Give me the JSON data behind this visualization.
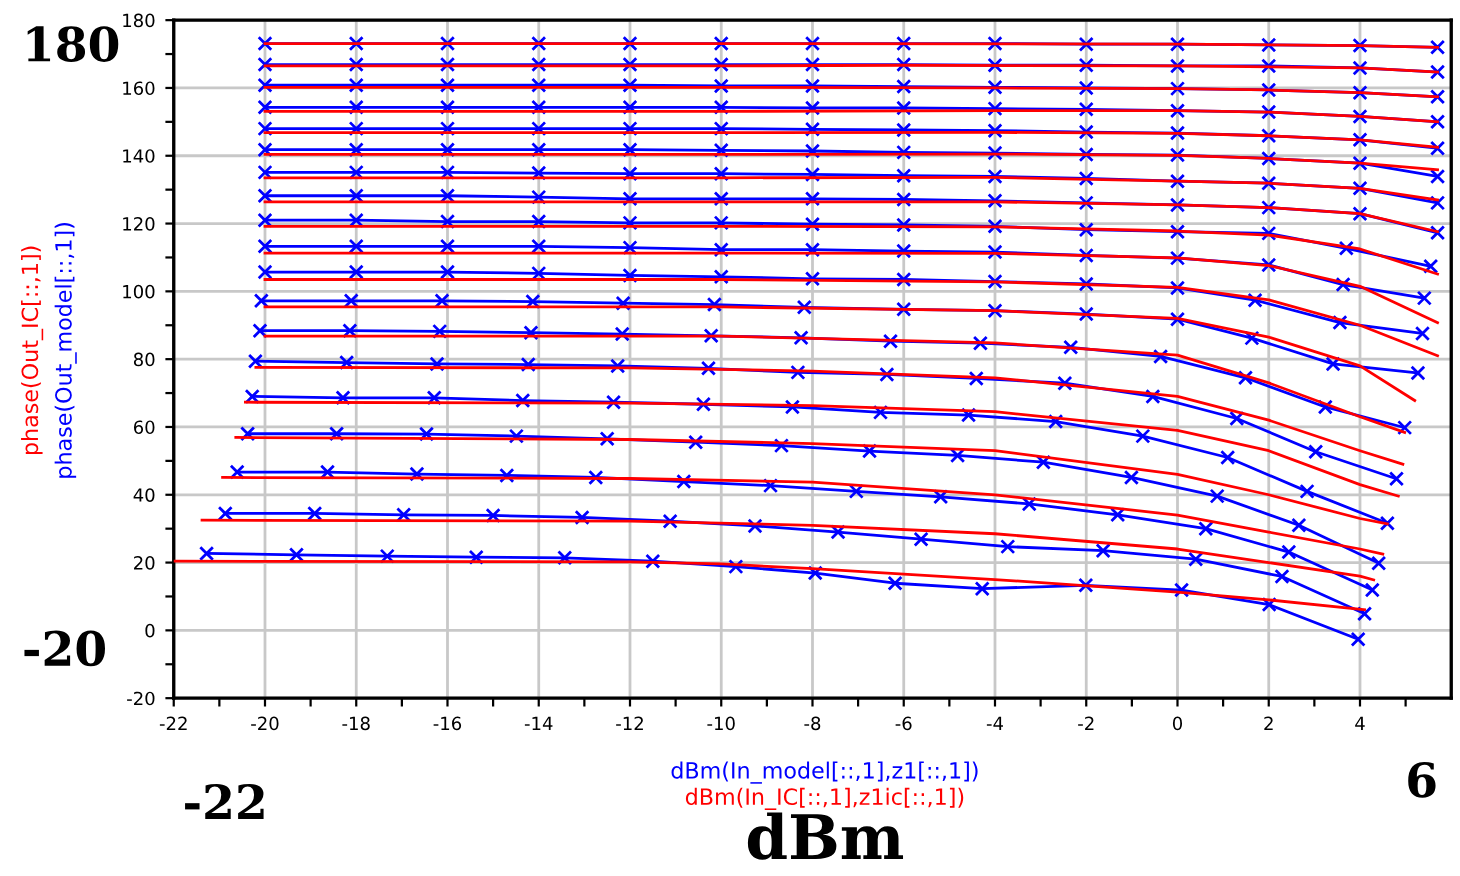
{
  "chart_data": {
    "type": "line",
    "xlabel": "dBm",
    "xlim": [
      -22,
      6
    ],
    "ylim": [
      -20,
      180
    ],
    "xticks": [
      -22,
      {
        "value": -21,
        "label": null
      },
      -20,
      {
        "value": -19,
        "label": null
      },
      -18,
      {
        "value": -17,
        "label": null
      },
      -16,
      {
        "value": -15,
        "label": null
      },
      -14,
      {
        "value": -13,
        "label": null
      },
      -12,
      {
        "value": -11,
        "label": null
      },
      -10,
      {
        "value": -9,
        "label": null
      },
      -8,
      {
        "value": -7,
        "label": null
      },
      -6,
      {
        "value": -5,
        "label": null
      },
      -4,
      {
        "value": -3,
        "label": null
      },
      -2,
      {
        "value": -1,
        "label": null
      },
      0,
      {
        "value": 1,
        "label": null
      },
      2,
      {
        "value": 3,
        "label": null
      },
      4,
      {
        "value": 5,
        "label": null
      }
    ],
    "yticks": [
      -20,
      {
        "value": -10,
        "label": null
      },
      0,
      {
        "value": 10,
        "label": null
      },
      20,
      {
        "value": 30,
        "label": null
      },
      40,
      {
        "value": 50,
        "label": null
      },
      60,
      {
        "value": 70,
        "label": null
      },
      80,
      {
        "value": 90,
        "label": null
      },
      100,
      {
        "value": 110,
        "label": null
      },
      120,
      {
        "value": 130,
        "label": null
      },
      140,
      {
        "value": 150,
        "label": null
      },
      160,
      {
        "value": 170,
        "label": null
      },
      180
    ],
    "grid": true,
    "marker": "cross",
    "line_style": "solid",
    "annotations": [
      "phase(Out_IC[::,1])",
      "phase(Out_model[::,1])",
      "dBm(In_model[::,1],z1[::,1])",
      "dBm(In_IC[::,1],z1ic[::,1])",
      "180",
      "-20",
      "-22",
      "6"
    ],
    "series": [
      {
        "color": "#0000ff",
        "x": [
          -20,
          -18,
          -16,
          -14,
          -12,
          -10,
          -8,
          -6,
          -4,
          -2,
          0,
          2,
          4,
          5.7
        ],
        "values": [
          173.1,
          173.1,
          173.1,
          173.1,
          173.1,
          173.1,
          173.1,
          173.1,
          173.1,
          172.9,
          172.9,
          172.7,
          172.5,
          172.0
        ]
      },
      {
        "color": "#0000ff",
        "x": [
          -20,
          -18,
          -16,
          -14,
          -12,
          -10,
          -8,
          -6,
          -4,
          -2,
          0,
          2,
          4,
          5.7
        ],
        "values": [
          166.9,
          166.9,
          166.9,
          166.9,
          166.9,
          166.9,
          166.9,
          166.9,
          166.7,
          166.7,
          166.5,
          166.5,
          165.9,
          164.7
        ]
      },
      {
        "color": "#0000ff",
        "x": [
          -20,
          -18,
          -16,
          -14,
          -12,
          -10,
          -8,
          -6,
          -4,
          -2,
          0,
          2,
          4,
          5.7
        ],
        "values": [
          160.8,
          160.8,
          160.8,
          160.8,
          160.8,
          160.6,
          160.6,
          160.4,
          160.2,
          160.0,
          159.8,
          159.4,
          158.6,
          157.4
        ]
      },
      {
        "color": "#0000ff",
        "x": [
          -20,
          -18,
          -16,
          -14,
          -12,
          -10,
          -8,
          -6,
          -4,
          -2,
          0,
          2,
          4,
          5.7
        ],
        "values": [
          154.3,
          154.3,
          154.3,
          154.3,
          154.3,
          154.3,
          154.1,
          154.1,
          153.9,
          153.7,
          153.3,
          152.9,
          151.6,
          150.0
        ]
      },
      {
        "color": "#0000ff",
        "x": [
          -20,
          -18,
          -16,
          -14,
          -12,
          -10,
          -8,
          -6,
          -4,
          -2,
          0,
          2,
          4,
          5.7
        ],
        "values": [
          148.0,
          148.0,
          148.0,
          148.0,
          148.0,
          148.0,
          147.8,
          147.6,
          147.4,
          147.0,
          146.7,
          145.9,
          144.7,
          142.2
        ]
      },
      {
        "color": "#0000ff",
        "x": [
          -20,
          -18,
          -16,
          -14,
          -12,
          -10,
          -8,
          -6,
          -4,
          -2,
          0,
          2,
          4,
          5.7
        ],
        "values": [
          141.8,
          141.8,
          141.8,
          141.8,
          141.8,
          141.6,
          141.4,
          141.0,
          140.8,
          140.4,
          140.2,
          139.2,
          137.8,
          133.9
        ]
      },
      {
        "color": "#0000ff",
        "x": [
          -20,
          -18,
          -16,
          -14,
          -12,
          -10,
          -8,
          -6,
          -4,
          -2,
          0,
          2,
          4,
          5.7
        ],
        "values": [
          135.1,
          135.1,
          135.1,
          134.9,
          134.7,
          134.7,
          134.5,
          134.1,
          133.9,
          133.3,
          132.5,
          131.9,
          130.4,
          126.1
        ]
      },
      {
        "color": "#0000ff",
        "x": [
          -20,
          -18,
          -16,
          -14,
          -12,
          -10,
          -8,
          -6,
          -4,
          -2,
          0,
          2,
          4,
          5.7
        ],
        "values": [
          128.2,
          128.2,
          128.2,
          127.8,
          127.3,
          127.3,
          127.3,
          127.1,
          126.7,
          126.1,
          125.5,
          124.7,
          122.9,
          117.3
        ]
      },
      {
        "color": "#0000ff",
        "x": [
          -20,
          -18,
          -16,
          -14,
          -12,
          -10,
          -8,
          -6,
          -4,
          -2,
          0,
          2,
          3.7,
          5.55
        ],
        "values": [
          121.0,
          121.0,
          120.6,
          120.6,
          120.2,
          120.2,
          119.8,
          119.6,
          119.2,
          118.2,
          117.6,
          117.1,
          112.7,
          107.4
        ]
      },
      {
        "color": "#0000ff",
        "x": [
          -20,
          -18,
          -16,
          -14,
          -12,
          -10,
          -8,
          -6,
          -4,
          -2,
          0,
          2,
          3.63,
          5.41
        ],
        "values": [
          113.3,
          113.3,
          113.3,
          113.3,
          112.9,
          112.3,
          112.3,
          111.9,
          111.6,
          110.6,
          109.8,
          107.8,
          102.0,
          98.0
        ]
      },
      {
        "color": "#0000ff",
        "x": [
          -20,
          -18,
          -16,
          -14,
          -12,
          -10,
          -8,
          -6,
          -4,
          -2,
          0,
          1.7,
          3.56,
          5.37
        ],
        "values": [
          105.7,
          105.7,
          105.7,
          105.3,
          104.7,
          104.3,
          103.7,
          103.5,
          102.9,
          102.2,
          101.0,
          97.4,
          90.8,
          87.6
        ]
      },
      {
        "color": "#0000ff",
        "x": [
          -20.08,
          -18.11,
          -16.12,
          -14.13,
          -12.15,
          -10.15,
          -8.18,
          -6,
          -4,
          -2,
          0,
          1.63,
          3.41,
          5.27
        ],
        "values": [
          97.2,
          97.2,
          97.2,
          97.0,
          96.5,
          96.1,
          95.3,
          94.7,
          94.3,
          93.3,
          91.8,
          86.2,
          78.6,
          75.9
        ]
      },
      {
        "color": "#0000ff",
        "x": [
          -20.11,
          -18.14,
          -16.17,
          -14.17,
          -12.17,
          -10.22,
          -8.25,
          -6.29,
          -4.32,
          -2.34,
          -0.37,
          1.49,
          3.24,
          4.98
        ],
        "values": [
          88.4,
          88.4,
          88.2,
          87.8,
          87.4,
          86.9,
          86.3,
          85.3,
          84.7,
          83.5,
          80.8,
          74.5,
          65.9,
          59.8
        ]
      },
      {
        "color": "#0000ff",
        "x": [
          -20.21,
          -18.21,
          -16.23,
          -14.23,
          -12.27,
          -10.28,
          -8.32,
          -6.37,
          -4.41,
          -2.47,
          -0.54,
          1.3,
          3.03,
          4.8
        ],
        "values": [
          79.4,
          79.0,
          78.6,
          78.4,
          78.0,
          77.3,
          76.1,
          75.5,
          74.3,
          72.9,
          69.0,
          62.5,
          52.7,
          44.7
        ]
      },
      {
        "color": "#0000ff",
        "x": [
          -20.28,
          -18.29,
          -16.29,
          -14.35,
          -12.36,
          -10.39,
          -8.44,
          -6.51,
          -4.58,
          -2.67,
          -0.76,
          1.1,
          2.84,
          4.6
        ],
        "values": [
          69.0,
          68.6,
          68.6,
          67.8,
          67.3,
          66.7,
          65.9,
          64.3,
          63.5,
          61.6,
          57.3,
          51.0,
          41.0,
          31.6
        ]
      },
      {
        "color": "#0000ff",
        "x": [
          -20.38,
          -18.43,
          -16.46,
          -14.49,
          -12.5,
          -10.56,
          -8.68,
          -6.75,
          -4.82,
          -2.94,
          -1.01,
          0.87,
          2.66,
          4.41
        ],
        "values": [
          58.0,
          58.0,
          57.9,
          57.3,
          56.5,
          55.5,
          54.5,
          52.9,
          51.6,
          49.6,
          45.1,
          39.6,
          31.0,
          19.8
        ]
      },
      {
        "color": "#0000ff",
        "x": [
          -20.61,
          -18.63,
          -16.67,
          -14.7,
          -12.75,
          -10.82,
          -8.92,
          -7.04,
          -5.19,
          -3.25,
          -1.31,
          0.62,
          2.44,
          4.27
        ],
        "values": [
          46.7,
          46.7,
          46.1,
          45.7,
          45.1,
          43.9,
          42.7,
          41.0,
          39.4,
          37.3,
          34.1,
          30.0,
          23.1,
          11.9
        ]
      },
      {
        "color": "#0000ff",
        "x": [
          -20.87,
          -18.91,
          -16.96,
          -15.0,
          -13.05,
          -11.12,
          -9.26,
          -7.44,
          -5.62,
          -3.72,
          -1.63,
          0.4,
          2.29,
          4.1
        ],
        "values": [
          34.5,
          34.5,
          34.1,
          33.9,
          33.3,
          32.2,
          30.8,
          29.0,
          26.9,
          24.7,
          23.5,
          21.0,
          15.9,
          4.9
        ]
      },
      {
        "color": "#0000ff",
        "x": [
          -21.28,
          -19.31,
          -17.32,
          -15.37,
          -13.43,
          -11.5,
          -9.68,
          -7.94,
          -6.19,
          -4.28,
          -2.01,
          0.09,
          2.01,
          3.96
        ],
        "values": [
          22.7,
          22.3,
          21.9,
          21.6,
          21.4,
          20.4,
          18.8,
          16.9,
          13.9,
          12.3,
          13.3,
          11.9,
          7.6,
          -2.6
        ]
      },
      {
        "color": "#ff0000",
        "marker": "none",
        "x": [
          -20,
          -10,
          0,
          4,
          5.7
        ],
        "values": [
          173.1,
          173.1,
          172.9,
          172.5,
          172.0
        ]
      },
      {
        "color": "#ff0000",
        "marker": "none",
        "x": [
          -20,
          -10,
          -6,
          0,
          4,
          5.7
        ],
        "values": [
          166.5,
          166.5,
          166.7,
          166.5,
          165.9,
          164.7
        ]
      },
      {
        "color": "#ff0000",
        "marker": "none",
        "x": [
          -20,
          -10,
          -4,
          0,
          2,
          4,
          5.7
        ],
        "values": [
          160.2,
          160.2,
          160.0,
          159.8,
          159.4,
          158.6,
          157.4
        ]
      },
      {
        "color": "#ff0000",
        "marker": "none",
        "x": [
          -20,
          -10,
          -4,
          0,
          2,
          4,
          5.7
        ],
        "values": [
          153.1,
          153.1,
          153.3,
          153.3,
          152.9,
          151.6,
          150.0
        ]
      },
      {
        "color": "#ff0000",
        "marker": "none",
        "x": [
          -20,
          -10,
          -4,
          0,
          2,
          4,
          5.7
        ],
        "values": [
          146.8,
          146.8,
          146.9,
          146.6,
          145.9,
          144.7,
          142.5
        ]
      },
      {
        "color": "#ff0000",
        "marker": "none",
        "x": [
          -20,
          -10,
          -4,
          0,
          2,
          4,
          5.7
        ],
        "values": [
          140.4,
          140.4,
          140.5,
          140.1,
          139.2,
          137.8,
          135.9
        ]
      },
      {
        "color": "#ff0000",
        "marker": "none",
        "x": [
          -20,
          -10,
          -4,
          0,
          2,
          4,
          5.7
        ],
        "values": [
          133.5,
          133.5,
          133.6,
          132.5,
          131.9,
          130.4,
          127.0
        ]
      },
      {
        "color": "#ff0000",
        "marker": "none",
        "x": [
          -20,
          -10,
          -4,
          0,
          2,
          4,
          5.7
        ],
        "values": [
          126.4,
          126.4,
          126.4,
          125.5,
          124.7,
          122.9,
          117.6
        ]
      },
      {
        "color": "#ff0000",
        "marker": "none",
        "x": [
          -20,
          -10,
          -4,
          0,
          2,
          4,
          5.7
        ],
        "values": [
          119.2,
          119.2,
          119.0,
          117.8,
          116.6,
          112.5,
          105.1
        ]
      },
      {
        "color": "#ff0000",
        "marker": "none",
        "x": [
          -20,
          -10,
          -4,
          0,
          2,
          4,
          5.7
        ],
        "values": [
          111.3,
          111.3,
          111.2,
          109.9,
          107.6,
          101.5,
          90.8
        ]
      },
      {
        "color": "#ff0000",
        "marker": "none",
        "x": [
          -20,
          -10,
          -4,
          0,
          2,
          4,
          5.7
        ],
        "values": [
          103.5,
          103.5,
          102.8,
          101.2,
          97.5,
          90.0,
          81.0
        ]
      },
      {
        "color": "#ff0000",
        "marker": "none",
        "x": [
          -20,
          -10,
          -4,
          0,
          2,
          4,
          5.2
        ],
        "values": [
          95.4,
          95.4,
          94.3,
          92.0,
          86.5,
          78.0,
          67.8
        ]
      },
      {
        "color": "#ff0000",
        "marker": "none",
        "x": [
          -20,
          -10,
          -4,
          0,
          2,
          4,
          4.98
        ],
        "values": [
          86.8,
          86.8,
          84.8,
          81.2,
          73.0,
          63.0,
          58.4
        ]
      },
      {
        "color": "#ff0000",
        "marker": "none",
        "x": [
          -20.2,
          -12,
          -8,
          -4,
          0,
          2,
          4,
          4.94
        ],
        "values": [
          77.6,
          77.4,
          76.5,
          74.5,
          69.0,
          62.0,
          53.0,
          49.0
        ]
      },
      {
        "color": "#ff0000",
        "marker": "none",
        "x": [
          -20.43,
          -12,
          -8,
          -4,
          0,
          2,
          4,
          4.84
        ],
        "values": [
          67.3,
          67.0,
          66.3,
          64.5,
          59.0,
          53.0,
          43.0,
          39.6
        ]
      },
      {
        "color": "#ff0000",
        "marker": "none",
        "x": [
          -20.64,
          -12,
          -8,
          -4,
          0,
          2,
          4,
          4.6
        ],
        "values": [
          56.9,
          56.3,
          55.1,
          53.0,
          46.0,
          40.0,
          33.0,
          31.4
        ]
      },
      {
        "color": "#ff0000",
        "marker": "none",
        "x": [
          -20.93,
          -12,
          -8,
          -4,
          0,
          2,
          4,
          4.5
        ],
        "values": [
          45.1,
          44.8,
          43.7,
          40.0,
          34.0,
          29.0,
          24.0,
          22.5
        ]
      },
      {
        "color": "#ff0000",
        "marker": "none",
        "x": [
          -21.38,
          -12,
          -8,
          -4,
          0,
          2,
          4,
          4.3
        ],
        "values": [
          32.5,
          32.2,
          31.0,
          28.5,
          24.0,
          20.0,
          16.0,
          14.9
        ]
      },
      {
        "color": "#ff0000",
        "marker": "none",
        "x": [
          -22,
          -12,
          -10,
          -8,
          -4,
          0,
          2,
          4.1
        ],
        "values": [
          20.4,
          20.2,
          19.6,
          18.2,
          15.0,
          11.3,
          9.0,
          6.1
        ]
      }
    ]
  }
}
